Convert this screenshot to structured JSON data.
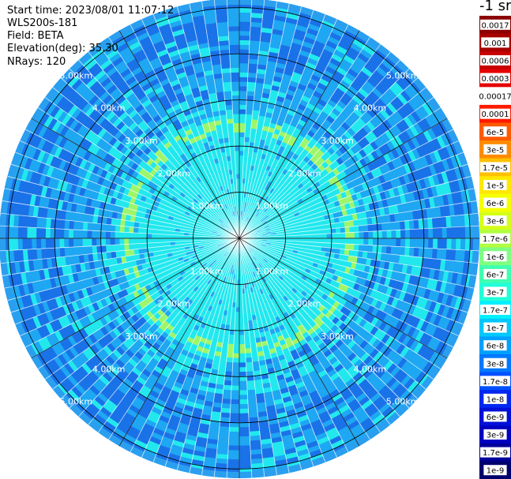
{
  "header": {
    "start_time": "Start time: 2023/08/01 11:07:12",
    "instrument": "WLS200s-181",
    "field": "Field: BETA",
    "elevation": "Elevation(deg): 35.30",
    "nrays": "NRays: 120"
  },
  "chart_data": {
    "type": "heatmap",
    "projection": "polar (PPI)",
    "n_rays": 120,
    "rmax_km": 5.2,
    "range_rings_km": [
      1,
      2,
      3,
      4,
      5
    ],
    "spoke_angles_deg": [
      0,
      30,
      60,
      90,
      120,
      150,
      180,
      210,
      240,
      270,
      300,
      330
    ],
    "ring_labels": [
      {
        "text": "1.00km",
        "r_km": 1.0
      },
      {
        "text": "2.00km",
        "r_km": 2.0
      },
      {
        "text": "3.00km",
        "r_km": 3.0
      },
      {
        "text": "4.00km",
        "r_km": 4.0
      },
      {
        "text": "5.00km",
        "r_km": 5.0
      }
    ],
    "ring_label_azimuths_deg": [
      45,
      135,
      225,
      315
    ],
    "colorbar": {
      "unit_label": "-1 sr",
      "labels": [
        "0.0017",
        "0.001",
        "0.0006",
        "0.0003",
        "0.00017",
        "0.0001",
        "6e-5",
        "3e-5",
        "1.7e-5",
        "1e-5",
        "6e-6",
        "3e-6",
        "1.7e-6",
        "1e-6",
        "6e-7",
        "3e-7",
        "1.7e-7",
        "1e-7",
        "6e-8",
        "3e-8",
        "1.7e-8",
        "1e-8",
        "6e-9",
        "3e-9",
        "1.7e-9",
        "1e-9"
      ],
      "colors": [
        "#8b0000",
        "#a80000",
        "#c80000",
        "#e60000",
        "#ffffff",
        "#ff1a00",
        "#ff5a00",
        "#ff8c00",
        "#ffc000",
        "#ffe800",
        "#f5ff00",
        "#d5ff1a",
        "#b0ff40",
        "#80ff80",
        "#40ffb0",
        "#20ffd8",
        "#00f0ff",
        "#00c8ff",
        "#00a0ff",
        "#0078ff",
        "#0050ff",
        "#0028f0",
        "#0010d8",
        "#0000c0",
        "#00009a",
        "#00006e"
      ]
    },
    "colors": {
      "inner_cyan": "#22e8ee",
      "mid_blue": "#1ea7f2",
      "outer_blue": "#1a72e8",
      "ring_band": "#9ff56a",
      "outer_edge": "#2a9ff0"
    }
  }
}
